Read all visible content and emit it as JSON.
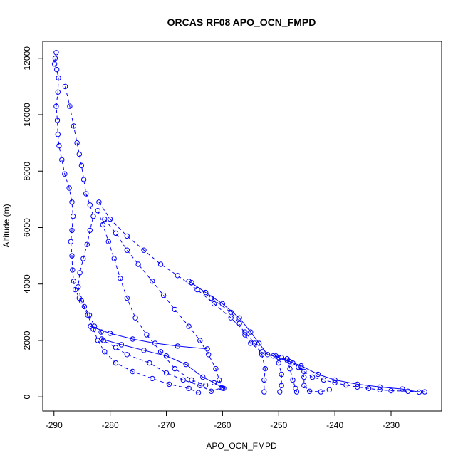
{
  "chart_data": {
    "type": "scatter",
    "title": "ORCAS RF08 APO_OCN_FMPD",
    "xlabel": "APO_OCN_FMPD",
    "ylabel": "Altitude (m)",
    "xlim": [
      -292,
      -221
    ],
    "ylim": [
      -500,
      12600
    ],
    "xticks": [
      -290,
      -280,
      -270,
      -260,
      -250,
      -240,
      -230
    ],
    "yticks": [
      0,
      2000,
      4000,
      6000,
      8000,
      10000,
      12000
    ],
    "grid": false,
    "legend": "none",
    "marker": "open-circle",
    "color": "#0000ff",
    "series": [
      {
        "style": "dashed",
        "points": [
          [
            -289.6,
            12200
          ],
          [
            -289.8,
            12000
          ],
          [
            -289.9,
            11800
          ],
          [
            -289.5,
            11600
          ],
          [
            -289.2,
            11300
          ],
          [
            -289.3,
            10800
          ],
          [
            -289.6,
            10300
          ],
          [
            -289.4,
            9800
          ],
          [
            -289.3,
            9300
          ],
          [
            -289.1,
            8900
          ],
          [
            -288.6,
            8400
          ],
          [
            -288.1,
            7900
          ],
          [
            -287.3,
            7400
          ],
          [
            -286.8,
            6900
          ],
          [
            -286.6,
            6400
          ],
          [
            -286.8,
            5900
          ],
          [
            -287.0,
            5500
          ],
          [
            -286.8,
            5000
          ],
          [
            -286.7,
            4500
          ],
          [
            -286.5,
            4100
          ],
          [
            -286.2,
            3800
          ],
          [
            -285.5,
            3500
          ],
          [
            -284.6,
            3200
          ],
          [
            -283.7,
            2900
          ],
          [
            -282.8,
            2500
          ],
          [
            -281.6,
            2300
          ],
          [
            -281.2,
            2000
          ],
          [
            -279.0,
            1750
          ],
          [
            -277.0,
            1500
          ],
          [
            -273.0,
            1200
          ],
          [
            -270.0,
            850
          ],
          [
            -267.0,
            600
          ],
          [
            -264.0,
            400
          ],
          [
            -262.0,
            200
          ],
          [
            -260.2,
            320
          ]
        ]
      },
      {
        "style": "dashed",
        "points": [
          [
            -288.0,
            11000
          ],
          [
            -287.2,
            10300
          ],
          [
            -286.5,
            9600
          ],
          [
            -285.9,
            9000
          ],
          [
            -285.5,
            8600
          ],
          [
            -285.1,
            8200
          ],
          [
            -284.7,
            7700
          ],
          [
            -284.3,
            7200
          ],
          [
            -283.6,
            6800
          ],
          [
            -283.0,
            6400
          ],
          [
            -283.6,
            5900
          ],
          [
            -284.1,
            5400
          ],
          [
            -284.8,
            4900
          ],
          [
            -285.4,
            4400
          ],
          [
            -285.7,
            3900
          ],
          [
            -285.1,
            3400
          ],
          [
            -284.0,
            2900
          ],
          [
            -283.0,
            2400
          ],
          [
            -282.2,
            2000
          ],
          [
            -281.0,
            1600
          ],
          [
            -279.0,
            1200
          ],
          [
            -276.0,
            900
          ],
          [
            -272.5,
            650
          ],
          [
            -269.5,
            450
          ],
          [
            -266.0,
            300
          ],
          [
            -264.3,
            150
          ]
        ]
      },
      {
        "style": "dashed",
        "points": [
          [
            -282.2,
            6600
          ],
          [
            -281.3,
            6100
          ],
          [
            -280.3,
            5500
          ],
          [
            -279.3,
            4900
          ],
          [
            -278.2,
            4200
          ],
          [
            -277.0,
            3500
          ],
          [
            -275.5,
            2800
          ],
          [
            -273.5,
            2200
          ],
          [
            -271.0,
            1600
          ],
          [
            -268.5,
            1000
          ],
          [
            -265.5,
            600
          ],
          [
            -263.0,
            420
          ]
        ]
      },
      {
        "style": "dashed",
        "points": [
          [
            -281.0,
            6300
          ],
          [
            -279.0,
            5800
          ],
          [
            -277.0,
            5200
          ],
          [
            -275.0,
            4700
          ],
          [
            -272.5,
            4100
          ],
          [
            -270.5,
            3600
          ],
          [
            -268.5,
            3100
          ],
          [
            -266.0,
            2500
          ],
          [
            -264.0,
            2000
          ],
          [
            -262.5,
            1500
          ],
          [
            -261.2,
            1000
          ],
          [
            -260.6,
            600
          ],
          [
            -260.0,
            310
          ]
        ]
      },
      {
        "style": "dashed",
        "points": [
          [
            -282.0,
            6900
          ],
          [
            -280.0,
            6300
          ],
          [
            -277.0,
            5700
          ],
          [
            -274.0,
            5200
          ],
          [
            -271.0,
            4700
          ],
          [
            -268.0,
            4300
          ],
          [
            -264.5,
            3800
          ],
          [
            -261.5,
            3300
          ],
          [
            -258.5,
            2800
          ],
          [
            -256.0,
            2300
          ],
          [
            -254.3,
            1900
          ],
          [
            -253.0,
            1500
          ],
          [
            -252.4,
            1000
          ],
          [
            -252.6,
            600
          ],
          [
            -252.6,
            180
          ]
        ]
      },
      {
        "style": "solid",
        "points": [
          [
            -266.0,
            4100
          ],
          [
            -263.0,
            3700
          ],
          [
            -260.0,
            3300
          ],
          [
            -257.0,
            2800
          ],
          [
            -255.0,
            2300
          ],
          [
            -253.5,
            1900
          ],
          [
            -252.0,
            1500
          ],
          [
            -250.0,
            1400
          ],
          [
            -248.0,
            1250
          ],
          [
            -246.0,
            1100
          ],
          [
            -243.0,
            800
          ],
          [
            -240.0,
            600
          ],
          [
            -236.0,
            450
          ],
          [
            -232.0,
            350
          ],
          [
            -228.0,
            280
          ],
          [
            -225.0,
            170
          ]
        ]
      },
      {
        "style": "dashed",
        "points": [
          [
            -265.5,
            4050
          ],
          [
            -262.0,
            3500
          ],
          [
            -258.5,
            3000
          ],
          [
            -257.0,
            2600
          ],
          [
            -256.0,
            2200
          ],
          [
            -255.0,
            1900
          ],
          [
            -253.0,
            1600
          ],
          [
            -251.0,
            1450
          ],
          [
            -249.5,
            1400
          ],
          [
            -248.5,
            1300
          ],
          [
            -247.5,
            1200
          ],
          [
            -246.5,
            1050
          ],
          [
            -245.5,
            900
          ],
          [
            -244.0,
            700
          ],
          [
            -242.0,
            600
          ],
          [
            -240.0,
            500
          ],
          [
            -238.0,
            420
          ],
          [
            -236.0,
            350
          ],
          [
            -234.0,
            300
          ],
          [
            -232.0,
            250
          ],
          [
            -230.0,
            220
          ],
          [
            -227.0,
            200
          ],
          [
            -224.0,
            180
          ]
        ]
      },
      {
        "style": "dashed",
        "points": [
          [
            -250.5,
            1450
          ],
          [
            -250.0,
            1200
          ],
          [
            -249.5,
            800
          ],
          [
            -249.5,
            400
          ],
          [
            -249.8,
            180
          ]
        ]
      },
      {
        "style": "dashed",
        "points": [
          [
            -248.5,
            1350
          ],
          [
            -248.0,
            1000
          ],
          [
            -247.5,
            600
          ],
          [
            -247.0,
            300
          ],
          [
            -246.8,
            180
          ]
        ]
      },
      {
        "style": "dashed",
        "points": [
          [
            -246.0,
            1050
          ],
          [
            -245.5,
            700
          ],
          [
            -245.5,
            400
          ],
          [
            -244.5,
            200
          ],
          [
            -242.5,
            180
          ],
          [
            -241.0,
            250
          ]
        ]
      },
      {
        "style": "solid",
        "points": [
          [
            -283.5,
            2500
          ],
          [
            -280.0,
            2250
          ],
          [
            -276.0,
            2050
          ],
          [
            -272.0,
            1900
          ],
          [
            -268.0,
            1800
          ],
          [
            -262.7,
            1700
          ]
        ]
      },
      {
        "style": "solid",
        "points": [
          [
            -281.5,
            2050
          ],
          [
            -278.0,
            1850
          ],
          [
            -274.0,
            1650
          ],
          [
            -270.0,
            1450
          ],
          [
            -266.5,
            1150
          ],
          [
            -263.5,
            700
          ],
          [
            -261.5,
            500
          ],
          [
            -259.8,
            300
          ]
        ]
      }
    ]
  }
}
